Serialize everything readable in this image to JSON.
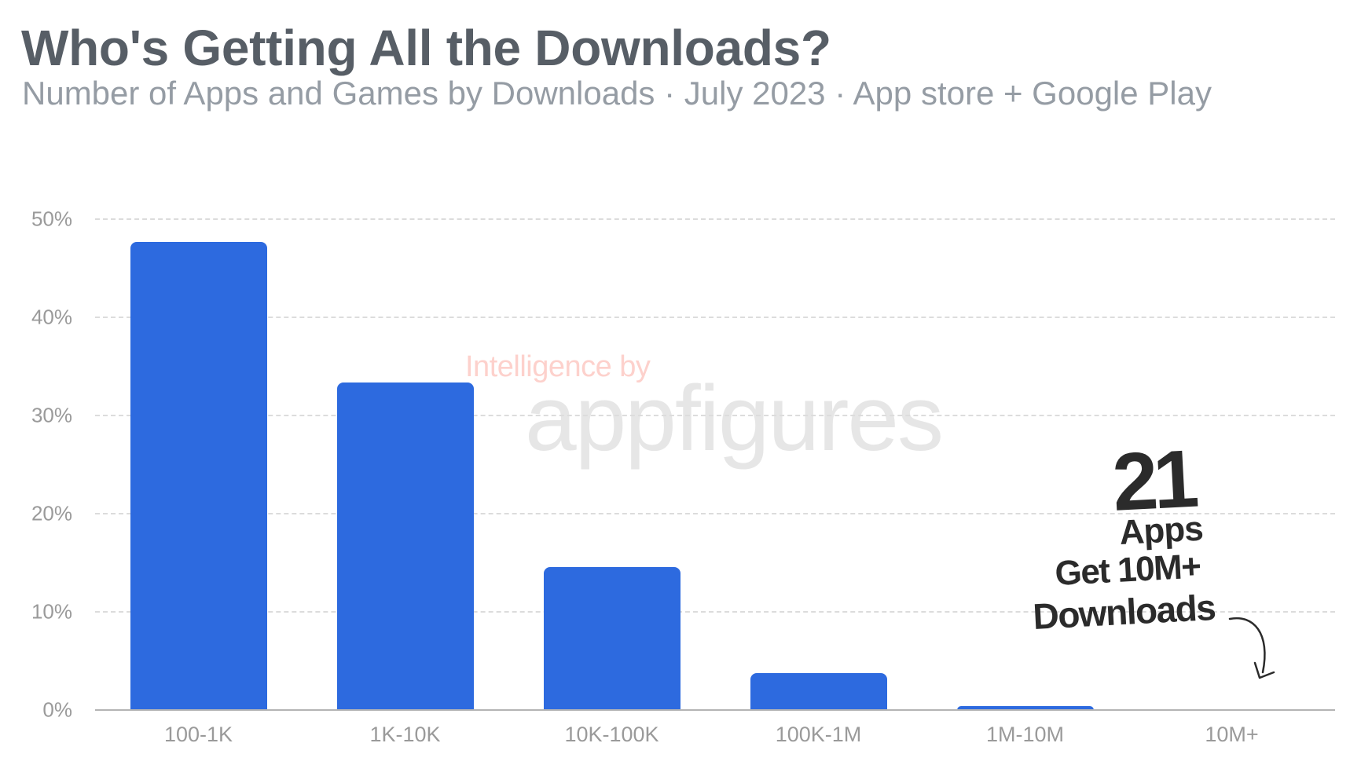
{
  "header": {
    "title": "Who's Getting All the Downloads?",
    "subtitle": "Number of Apps and Games by Downloads · July 2023 · App store + Google Play"
  },
  "watermark": {
    "line1": "Intelligence by",
    "line2": "appfigures"
  },
  "annotation": {
    "number": "21",
    "line1": "Apps",
    "line2": "Get 10M+",
    "line3": "Downloads"
  },
  "colors": {
    "bar": "#2d6adf",
    "title": "#575e66",
    "subtitle": "#959ca4",
    "watermark_accent": "#fdd1cc"
  },
  "axis": {
    "y_ticks": [
      "50%",
      "40%",
      "30%",
      "20%",
      "10%",
      "0%"
    ],
    "x_ticks": [
      "100-1K",
      "1K-10K",
      "10K-100K",
      "100K-1M",
      "1M-10M",
      "10M+"
    ]
  },
  "chart_data": {
    "type": "bar",
    "title": "Who's Getting All the Downloads?",
    "subtitle": "Number of Apps and Games by Downloads · July 2023 · App store + Google Play",
    "categories": [
      "100-1K",
      "1K-10K",
      "10K-100K",
      "100K-1M",
      "1M-10M",
      "10M+"
    ],
    "values": [
      47.7,
      33.4,
      14.6,
      3.8,
      0.4,
      0.0
    ],
    "unit": "%",
    "xlabel": "",
    "ylabel": "",
    "ylim": [
      0,
      50
    ],
    "yticks": [
      0,
      10,
      20,
      30,
      40,
      50
    ],
    "grid": "horizontal dashed",
    "legend": "none",
    "annotations": [
      "21 Apps Get 10M+ Downloads (arrow pointing to 10M+ bar)"
    ]
  }
}
